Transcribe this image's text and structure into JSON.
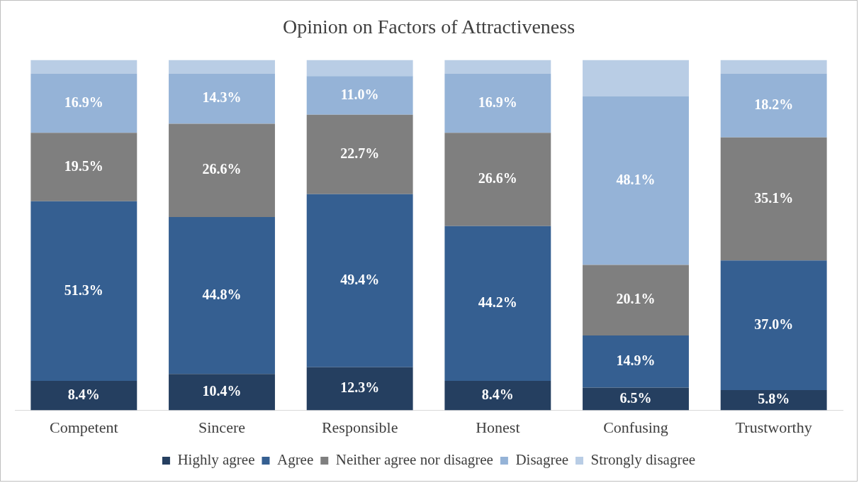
{
  "chart_data": {
    "type": "bar",
    "title": "Opinion on Factors of Attractiveness",
    "categories": [
      "Competent",
      "Sincere",
      "Responsible",
      "Honest",
      "Confusing",
      "Trustworthy"
    ],
    "stacked": true,
    "ylim": [
      0,
      100
    ],
    "tick_labels": "x",
    "grid": false,
    "legend": "bottom",
    "series": [
      {
        "name": "Highly agree",
        "color": "#253f60",
        "values": [
          8.4,
          10.4,
          12.3,
          8.4,
          6.5,
          5.8
        ],
        "value_labels": [
          "8.4%",
          "10.4%",
          "12.3%",
          "8.4%",
          "6.5%",
          "5.8%"
        ]
      },
      {
        "name": "Agree",
        "color": "#355f91",
        "values": [
          51.3,
          44.8,
          49.4,
          44.2,
          14.9,
          37.0
        ],
        "value_labels": [
          "51.3%",
          "44.8%",
          "49.4%",
          "44.2%",
          "14.9%",
          "37.0%"
        ]
      },
      {
        "name": "Neither agree nor disagree",
        "color": "#7f7f7f",
        "values": [
          19.5,
          26.6,
          22.7,
          26.6,
          20.1,
          35.1
        ],
        "value_labels": [
          "19.5%",
          "26.6%",
          "22.7%",
          "26.6%",
          "20.1%",
          "35.1%"
        ]
      },
      {
        "name": "Disagree",
        "color": "#95b3d7",
        "values": [
          16.9,
          14.3,
          11.0,
          16.9,
          48.1,
          18.2
        ],
        "value_labels": [
          "16.9%",
          "14.3%",
          "11.0%",
          "16.9%",
          "48.1%",
          "18.2%"
        ]
      },
      {
        "name": "Strongly disagree",
        "color": "#b9cde5",
        "values": [
          3.9,
          3.9,
          4.6,
          3.9,
          10.4,
          3.9
        ],
        "value_labels": [
          null,
          null,
          null,
          null,
          null,
          null
        ]
      }
    ]
  }
}
